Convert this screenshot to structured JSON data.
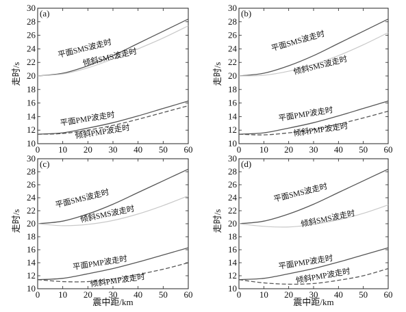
{
  "figure": {
    "ylabel": "走时/s",
    "xlabel": "震中距/km"
  },
  "chart_data": [
    {
      "type": "line",
      "panel": "(a)",
      "xlabel": "震中距/km",
      "ylabel": "走时/s",
      "xlim": [
        0,
        60
      ],
      "ylim": [
        10,
        30
      ],
      "xticks": [
        0,
        10,
        20,
        30,
        40,
        50,
        60
      ],
      "yticks": [
        10,
        12,
        14,
        16,
        18,
        20,
        22,
        24,
        26,
        28,
        30
      ],
      "x": [
        0,
        10,
        20,
        30,
        40,
        50,
        60
      ],
      "series": [
        {
          "name": "平面SMS波走时",
          "values": [
            20.0,
            20.4,
            21.5,
            23.0,
            24.8,
            26.6,
            28.4
          ],
          "color": "#555555",
          "style": "solid"
        },
        {
          "name": "倾斜SMS波走时",
          "values": [
            20.0,
            20.3,
            21.2,
            22.5,
            24.0,
            25.6,
            27.4
          ],
          "color": "#c8c8c8",
          "style": "solid"
        },
        {
          "name": "平面PMP波走时",
          "values": [
            11.4,
            11.6,
            12.3,
            13.1,
            14.1,
            15.2,
            16.3
          ],
          "color": "#555555",
          "style": "solid"
        },
        {
          "name": "倾斜PMP波走时",
          "values": [
            11.4,
            11.5,
            12.0,
            12.7,
            13.6,
            14.6,
            15.6
          ],
          "color": "#555555",
          "style": "dashed"
        }
      ],
      "labels": [
        {
          "text": "平面SMS波走时",
          "x": 19,
          "y": 23.7,
          "angle": -14
        },
        {
          "text": "倾斜SMS波走时",
          "x": 29,
          "y": 22.4,
          "angle": -13
        },
        {
          "text": "平面PMP波走时",
          "x": 20,
          "y": 13.3,
          "angle": -9
        },
        {
          "text": "倾斜PMP波走时",
          "x": 26,
          "y": 11.4,
          "angle": -9
        }
      ]
    },
    {
      "type": "line",
      "panel": "(b)",
      "xlabel": "震中距/km",
      "ylabel": "走时/s",
      "xlim": [
        0,
        60
      ],
      "ylim": [
        10,
        30
      ],
      "xticks": [
        0,
        10,
        20,
        30,
        40,
        50,
        60
      ],
      "yticks": [
        10,
        12,
        14,
        16,
        18,
        20,
        22,
        24,
        26,
        28,
        30
      ],
      "x": [
        0,
        10,
        20,
        30,
        40,
        50,
        60
      ],
      "series": [
        {
          "name": "平面SMS波走时",
          "values": [
            20.0,
            20.4,
            21.5,
            23.0,
            24.8,
            26.6,
            28.4
          ],
          "color": "#555555",
          "style": "solid"
        },
        {
          "name": "倾斜SMS波走时",
          "values": [
            20.0,
            20.1,
            20.7,
            21.7,
            23.0,
            24.6,
            26.4
          ],
          "color": "#c8c8c8",
          "style": "solid"
        },
        {
          "name": "平面PMP波走时",
          "values": [
            11.4,
            11.6,
            12.3,
            13.1,
            14.1,
            15.2,
            16.3
          ],
          "color": "#555555",
          "style": "solid"
        },
        {
          "name": "倾斜PMP波走时",
          "values": [
            11.4,
            11.3,
            11.6,
            12.1,
            12.9,
            13.8,
            14.8
          ],
          "color": "#555555",
          "style": "dashed"
        }
      ],
      "labels": [
        {
          "text": "平面SMS波走时",
          "x": 24,
          "y": 24.8,
          "angle": -16
        },
        {
          "text": "倾斜SMS波走时",
          "x": 33,
          "y": 21.2,
          "angle": -14
        },
        {
          "text": "平面PMP波走时",
          "x": 27,
          "y": 14.0,
          "angle": -9
        },
        {
          "text": "倾斜PMP波走时",
          "x": 33,
          "y": 11.7,
          "angle": -8
        }
      ]
    },
    {
      "type": "line",
      "panel": "(c)",
      "xlabel": "震中距/km",
      "ylabel": "走时/s",
      "xlim": [
        0,
        60
      ],
      "ylim": [
        10,
        30
      ],
      "xticks": [
        0,
        10,
        20,
        30,
        40,
        50,
        60
      ],
      "yticks": [
        10,
        12,
        14,
        16,
        18,
        20,
        22,
        24,
        26,
        28,
        30
      ],
      "x": [
        0,
        10,
        20,
        30,
        40,
        50,
        60
      ],
      "series": [
        {
          "name": "平面SMS波走时",
          "values": [
            20.0,
            20.4,
            21.5,
            23.0,
            24.8,
            26.6,
            28.4
          ],
          "color": "#555555",
          "style": "solid"
        },
        {
          "name": "倾斜SMS波走时",
          "values": [
            20.0,
            19.7,
            19.9,
            20.5,
            21.5,
            22.8,
            24.3
          ],
          "color": "#c8c8c8",
          "style": "solid"
        },
        {
          "name": "平面PMP波走时",
          "values": [
            11.4,
            11.6,
            12.3,
            13.1,
            14.1,
            15.2,
            16.3
          ],
          "color": "#555555",
          "style": "solid"
        },
        {
          "name": "倾斜PMP波走时",
          "values": [
            11.4,
            11.1,
            11.1,
            11.5,
            12.2,
            13.0,
            14.0
          ],
          "color": "#555555",
          "style": "dashed"
        }
      ],
      "labels": [
        {
          "text": "平面SMS波走时",
          "x": 18,
          "y": 23.5,
          "angle": -14
        },
        {
          "text": "倾斜SMS波走时",
          "x": 28,
          "y": 21.1,
          "angle": -12
        },
        {
          "text": "平面PMP波走时",
          "x": 25,
          "y": 13.6,
          "angle": -9
        },
        {
          "text": "倾斜PMP波走时",
          "x": 32,
          "y": 10.9,
          "angle": -8
        }
      ]
    },
    {
      "type": "line",
      "panel": "(d)",
      "xlabel": "震中距/km",
      "ylabel": "走时/s",
      "xlim": [
        0,
        60
      ],
      "ylim": [
        10,
        30
      ],
      "xticks": [
        0,
        10,
        20,
        30,
        40,
        50,
        60
      ],
      "yticks": [
        10,
        12,
        14,
        16,
        18,
        20,
        22,
        24,
        26,
        28,
        30
      ],
      "x": [
        0,
        10,
        20,
        30,
        40,
        50,
        60
      ],
      "series": [
        {
          "name": "平面SMS波走时",
          "values": [
            20.0,
            20.4,
            21.5,
            23.0,
            24.8,
            26.6,
            28.4
          ],
          "color": "#555555",
          "style": "solid"
        },
        {
          "name": "倾斜SMS波走时",
          "values": [
            20.0,
            19.6,
            19.5,
            19.9,
            20.6,
            21.6,
            22.9
          ],
          "color": "#c8c8c8",
          "style": "solid"
        },
        {
          "name": "平面PMP波走时",
          "values": [
            11.4,
            11.6,
            12.3,
            13.1,
            14.1,
            15.2,
            16.3
          ],
          "color": "#555555",
          "style": "solid"
        },
        {
          "name": "倾斜PMP波走时",
          "values": [
            11.4,
            10.9,
            10.7,
            10.8,
            11.3,
            12.0,
            13.1
          ],
          "color": "#555555",
          "style": "dashed"
        }
      ],
      "labels": [
        {
          "text": "平面SMS波走时",
          "x": 25,
          "y": 24.4,
          "angle": -14
        },
        {
          "text": "倾斜SMS波走时",
          "x": 36,
          "y": 20.4,
          "angle": -12
        },
        {
          "text": "平面PMP波走时",
          "x": 27,
          "y": 13.7,
          "angle": -9
        },
        {
          "text": "倾斜PMP波走时",
          "x": 34,
          "y": 11.6,
          "angle": -10
        }
      ]
    }
  ]
}
